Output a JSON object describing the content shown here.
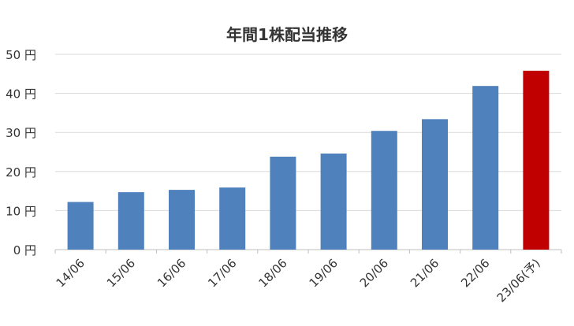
{
  "chart_data": {
    "type": "bar",
    "title": "年間1株配当推移",
    "categories": [
      "14/06",
      "15/06",
      "16/06",
      "17/06",
      "18/06",
      "19/06",
      "20/06",
      "21/06",
      "22/06",
      "23/06(予)"
    ],
    "values": [
      12.2,
      14.7,
      15.3,
      15.9,
      23.8,
      24.6,
      30.4,
      33.4,
      41.9,
      45.8
    ],
    "y_ticks": [
      "0 円",
      "10 円",
      "20 円",
      "30 円",
      "40 円",
      "50 円"
    ],
    "ylim": [
      0,
      50
    ],
    "xlabel": "",
    "ylabel": "",
    "grid": true,
    "colors": {
      "actual": "#4f81bd",
      "forecast": "#c00000",
      "grid": "#d9d9d9",
      "axis": "#bfbfbf",
      "text": "#333333"
    },
    "forecast_index": 9
  }
}
